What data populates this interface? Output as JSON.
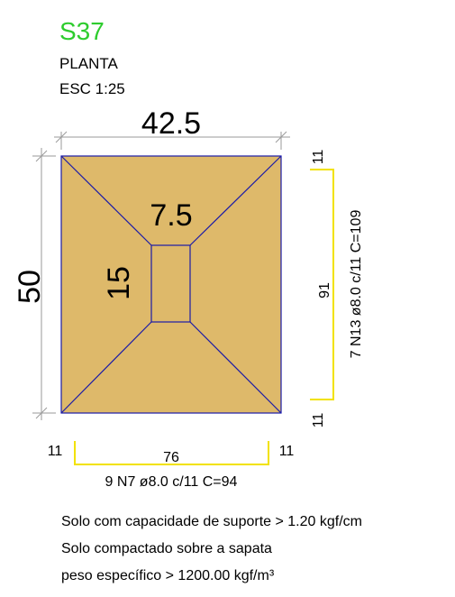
{
  "header": {
    "code": "S37",
    "view": "PLANTA",
    "scale": "ESC 1:25"
  },
  "dimensions": {
    "width": "42.5",
    "height": "50",
    "pedestal_width": "7.5",
    "pedestal_height": "15"
  },
  "rebar": {
    "right_top": "11",
    "right_mid": "91",
    "right_bottom": "11",
    "right_label": "7 N13 ø8.0 c/11 C=109",
    "bottom_left": "11",
    "bottom_mid": "76",
    "bottom_right": "11",
    "bottom_label": "9 N7 ø8.0 c/11 C=94"
  },
  "notes": [
    "Solo com capacidade de suporte > 1.20 kgf/cm",
    "Solo compactado sobre a sapata",
    "peso específico > 1200.00 kgf/m³"
  ],
  "colors": {
    "code_green": "#2ecc2e",
    "footing_fill": "#deb96a",
    "outline_blue": "#1a1aa8",
    "rebar_yellow": "#f2e200",
    "dim_gray": "#9a9a9a"
  }
}
